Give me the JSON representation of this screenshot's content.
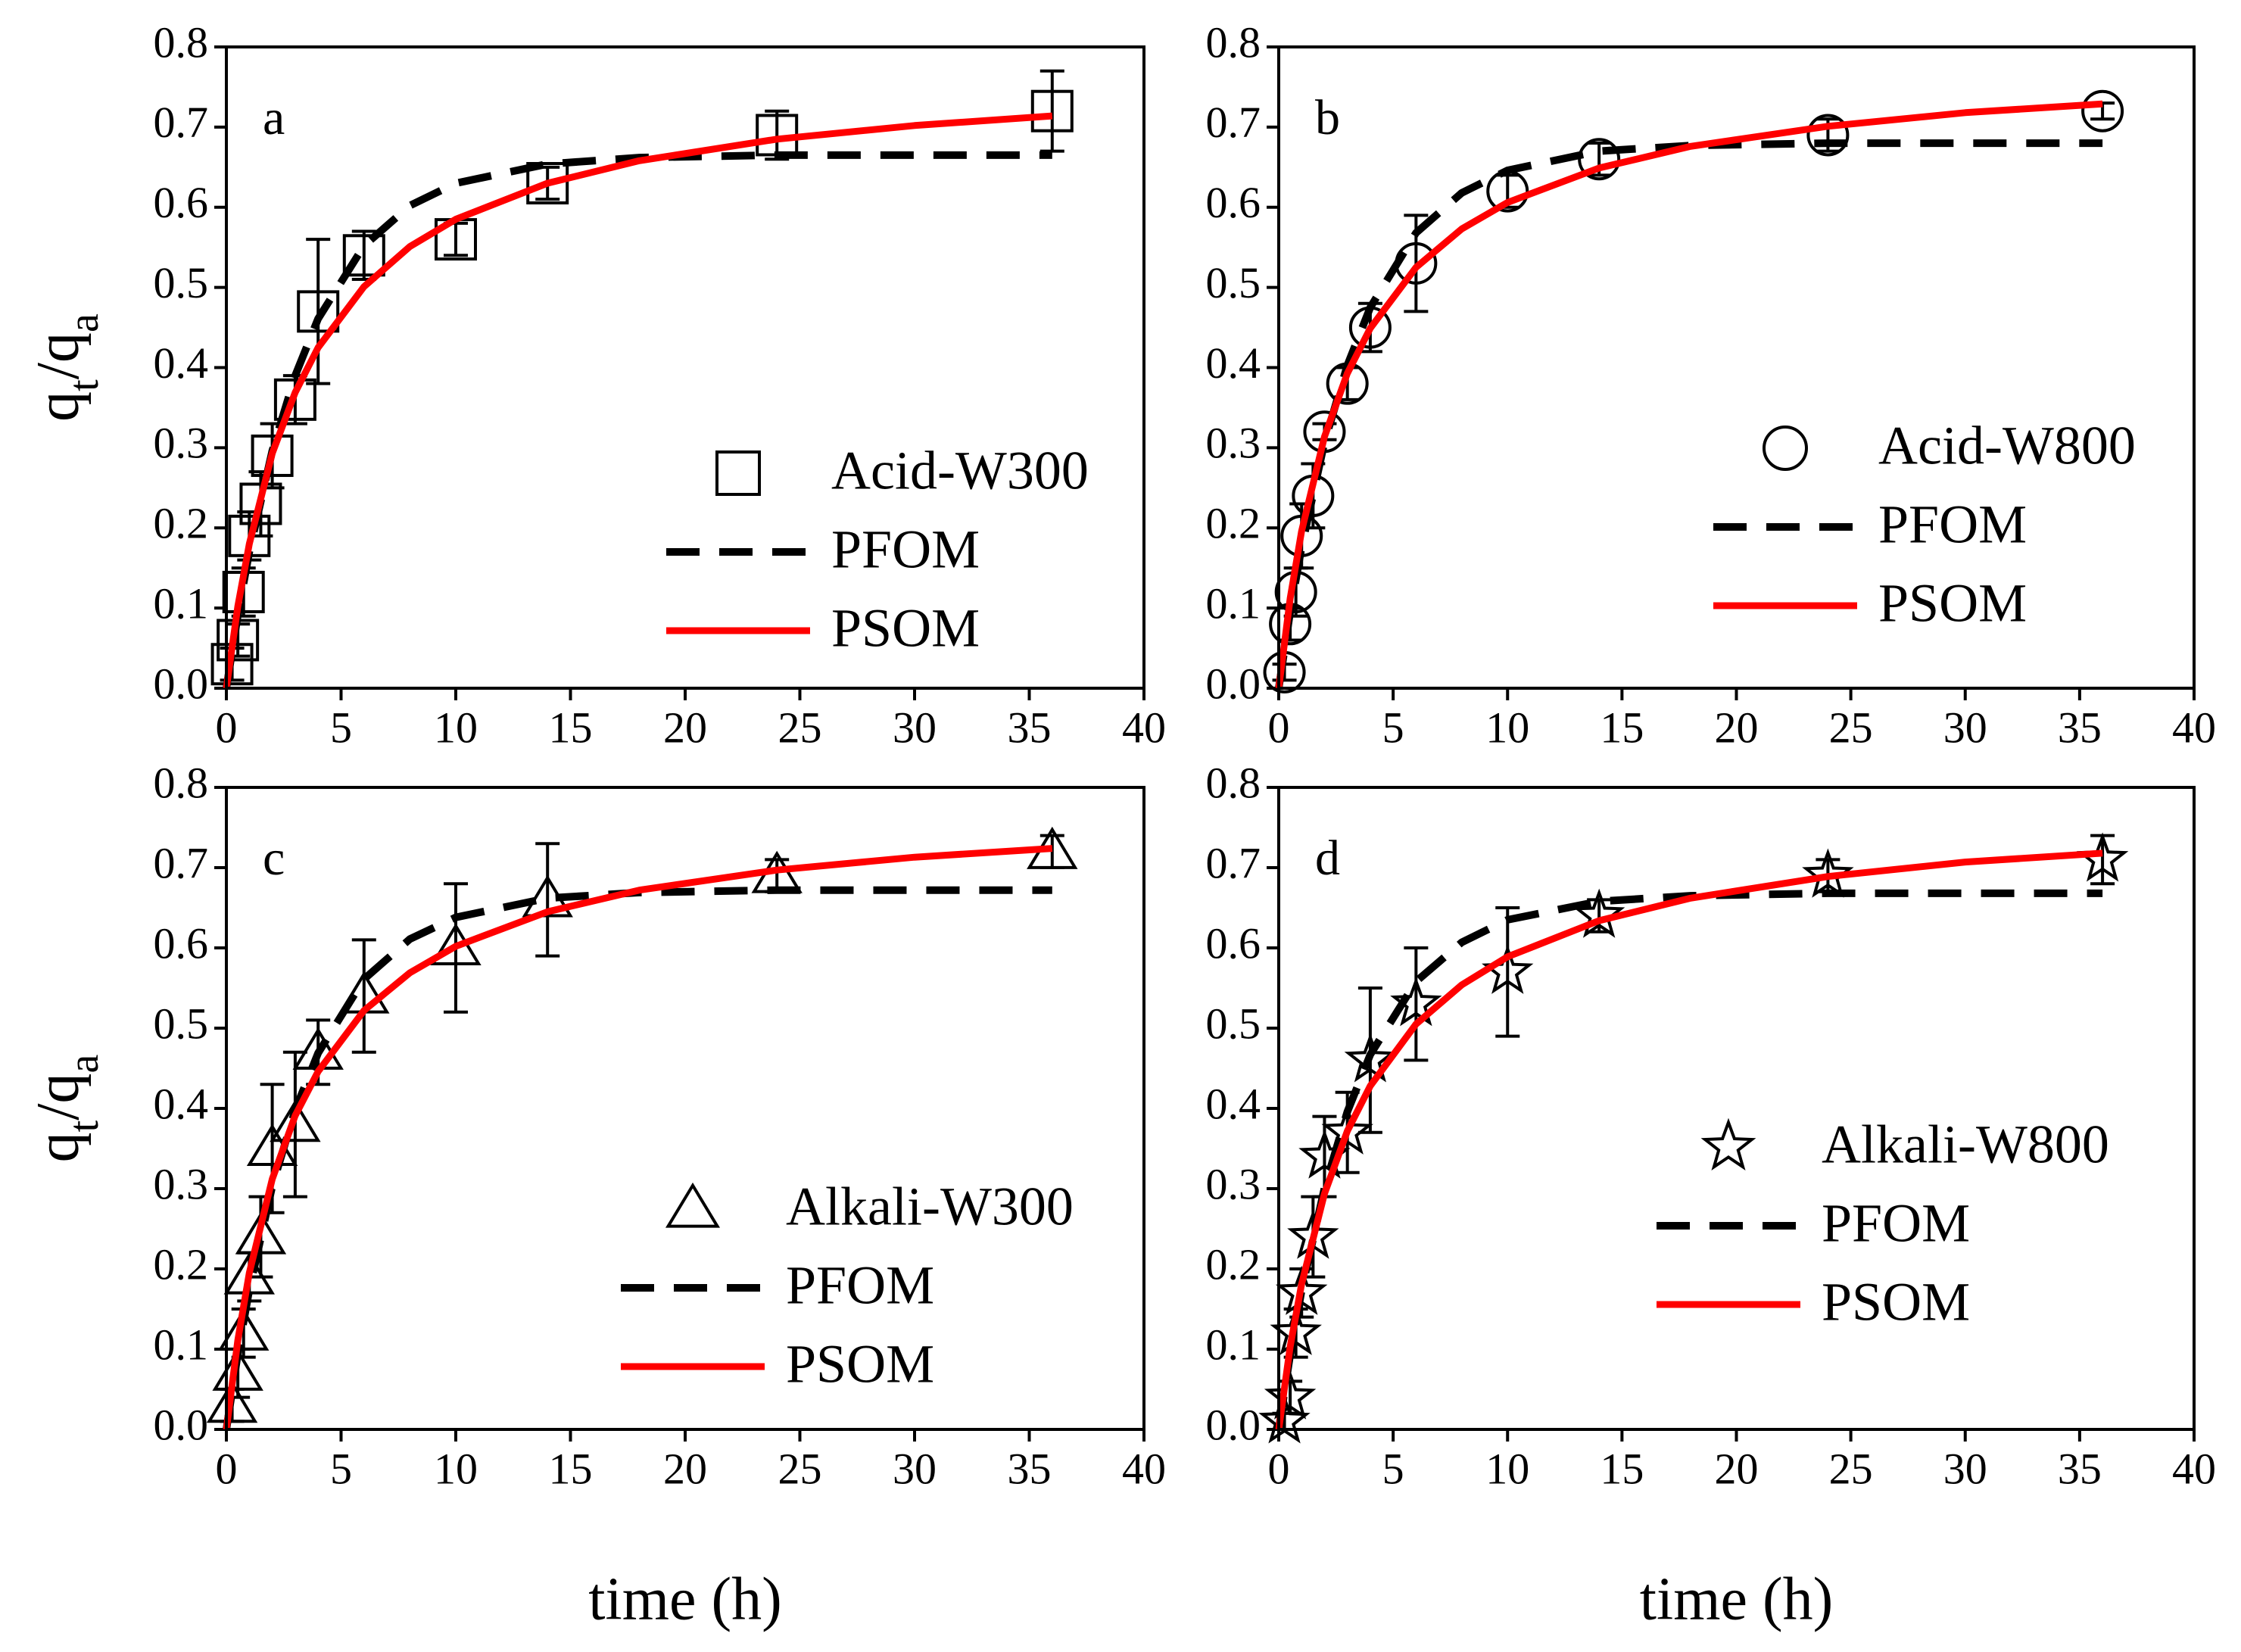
{
  "chart_data": [
    {
      "type": "scatter",
      "label": "a",
      "ylabel": [
        "q",
        "t",
        "/q",
        "a"
      ],
      "xlim": [
        0,
        40
      ],
      "ylim": [
        0,
        0.8
      ],
      "xticks": [
        0,
        5,
        10,
        15,
        20,
        25,
        30,
        35,
        40
      ],
      "yticks": [
        {
          "value": 0,
          "label": "0.0"
        },
        0.1,
        0.2,
        0.3,
        0.4,
        0.5,
        0.6,
        0.7,
        0.8
      ],
      "series": [
        {
          "name": "Acid-W300",
          "color": "#000000",
          "marker": "square",
          "x": [
            0.25,
            0.5,
            0.75,
            1,
            1.5,
            2,
            3,
            4,
            6,
            10,
            14,
            24,
            36
          ],
          "values": [
            0.03,
            0.06,
            0.12,
            0.19,
            0.23,
            0.29,
            0.36,
            0.47,
            0.54,
            0.56,
            0.63,
            0.69,
            0.72
          ],
          "errors": [
            0.02,
            0.02,
            0.03,
            0.03,
            0.04,
            0.04,
            0.03,
            0.09,
            0.03,
            0.02,
            0.02,
            0.03,
            0.05
          ]
        },
        {
          "name": "PFOM",
          "color": "#000000",
          "dashed": true,
          "x": [
            0,
            0.5,
            1,
            2,
            3,
            4,
            6,
            8,
            10,
            14,
            18,
            24,
            30,
            36
          ],
          "values": [
            0,
            0.091,
            0.17,
            0.296,
            0.39,
            0.461,
            0.552,
            0.602,
            0.63,
            0.654,
            0.662,
            0.665,
            0.665,
            0.665
          ]
        },
        {
          "name": "PSOM",
          "color": "#ff0000",
          "x": [
            0,
            0.5,
            1,
            2,
            3,
            4,
            6,
            8,
            10,
            14,
            18,
            24,
            30,
            36
          ],
          "values": [
            0,
            0.102,
            0.18,
            0.293,
            0.369,
            0.425,
            0.501,
            0.551,
            0.585,
            0.63,
            0.658,
            0.685,
            0.702,
            0.714
          ]
        }
      ]
    },
    {
      "type": "scatter",
      "label": "b",
      "xlim": [
        0,
        40
      ],
      "ylim": [
        0,
        0.8
      ],
      "xticks": [
        0,
        5,
        10,
        15,
        20,
        25,
        30,
        35,
        40
      ],
      "yticks": [
        {
          "value": 0,
          "label": "0.0"
        },
        0.1,
        0.2,
        0.3,
        0.4,
        0.5,
        0.6,
        0.7,
        0.8
      ],
      "series": [
        {
          "name": "Acid-W800",
          "color": "#000000",
          "marker": "circle",
          "x": [
            0.25,
            0.5,
            0.75,
            1,
            1.5,
            2,
            3,
            4,
            6,
            10,
            14,
            24,
            36
          ],
          "values": [
            0.02,
            0.08,
            0.12,
            0.19,
            0.24,
            0.32,
            0.38,
            0.45,
            0.53,
            0.62,
            0.66,
            0.69,
            0.72
          ],
          "errors": [
            0.01,
            0.02,
            0.03,
            0.04,
            0.04,
            0.01,
            0.02,
            0.03,
            0.06,
            0.02,
            0.02,
            0.02,
            0.01
          ]
        },
        {
          "name": "PFOM",
          "color": "#000000",
          "dashed": true,
          "x": [
            0,
            0.5,
            1,
            2,
            3,
            4,
            6,
            8,
            10,
            14,
            18,
            24,
            30,
            36
          ],
          "values": [
            0,
            0.095,
            0.176,
            0.307,
            0.403,
            0.475,
            0.568,
            0.618,
            0.646,
            0.67,
            0.677,
            0.68,
            0.68,
            0.68
          ]
        },
        {
          "name": "PSOM",
          "color": "#ff0000",
          "x": [
            0,
            0.5,
            1,
            2,
            3,
            4,
            6,
            8,
            10,
            14,
            18,
            24,
            30,
            36
          ],
          "values": [
            0,
            0.112,
            0.196,
            0.314,
            0.393,
            0.449,
            0.525,
            0.573,
            0.606,
            0.649,
            0.676,
            0.701,
            0.718,
            0.729
          ]
        }
      ]
    },
    {
      "type": "scatter",
      "label": "c",
      "ylabel": [
        "q",
        "t",
        "/q",
        "a"
      ],
      "xlabel": "time (h)",
      "xlim": [
        0,
        40
      ],
      "ylim": [
        0,
        0.8
      ],
      "xticks": [
        0,
        5,
        10,
        15,
        20,
        25,
        30,
        35,
        40
      ],
      "yticks": [
        {
          "value": 0,
          "label": "0.0"
        },
        0.1,
        0.2,
        0.3,
        0.4,
        0.5,
        0.6,
        0.7,
        0.8
      ],
      "series": [
        {
          "name": "Alkali-W300",
          "color": "#000000",
          "marker": "triangle",
          "x": [
            0.25,
            0.5,
            0.75,
            1,
            1.5,
            2,
            3,
            4,
            6,
            10,
            14,
            24,
            36
          ],
          "values": [
            0.03,
            0.07,
            0.12,
            0.19,
            0.24,
            0.35,
            0.38,
            0.47,
            0.54,
            0.6,
            0.66,
            0.69,
            0.72
          ],
          "errors": [
            0.02,
            0.03,
            0.03,
            0.03,
            0.05,
            0.08,
            0.09,
            0.04,
            0.07,
            0.08,
            0.07,
            0.02,
            0.02
          ]
        },
        {
          "name": "PFOM",
          "color": "#000000",
          "dashed": true,
          "x": [
            0,
            0.5,
            1,
            2,
            3,
            4,
            6,
            8,
            10,
            14,
            18,
            24,
            30,
            36
          ],
          "values": [
            0,
            0.094,
            0.174,
            0.303,
            0.398,
            0.469,
            0.561,
            0.611,
            0.638,
            0.662,
            0.669,
            0.672,
            0.672,
            0.672
          ]
        },
        {
          "name": "PSOM",
          "color": "#ff0000",
          "x": [
            0,
            0.5,
            1,
            2,
            3,
            4,
            6,
            8,
            10,
            14,
            18,
            24,
            30,
            36
          ],
          "values": [
            0,
            0.111,
            0.195,
            0.312,
            0.391,
            0.446,
            0.522,
            0.569,
            0.602,
            0.645,
            0.672,
            0.697,
            0.713,
            0.724
          ]
        }
      ]
    },
    {
      "type": "scatter",
      "label": "d",
      "xlabel": "time (h)",
      "xlim": [
        0,
        40
      ],
      "ylim": [
        0,
        0.8
      ],
      "xticks": [
        0,
        5,
        10,
        15,
        20,
        25,
        30,
        35,
        40
      ],
      "yticks": [
        {
          "value": 0,
          "label": "0.0"
        },
        0.1,
        0.2,
        0.3,
        0.4,
        0.5,
        0.6,
        0.7,
        0.8
      ],
      "series": [
        {
          "name": "Alkali-W800",
          "color": "#000000",
          "marker": "star",
          "x": [
            0.25,
            0.5,
            0.75,
            1,
            1.5,
            2,
            3,
            4,
            6,
            10,
            14,
            24,
            36
          ],
          "values": [
            0.01,
            0.04,
            0.12,
            0.17,
            0.24,
            0.34,
            0.37,
            0.46,
            0.53,
            0.57,
            0.64,
            0.69,
            0.71
          ],
          "errors": [
            0.01,
            0.02,
            0.03,
            0.03,
            0.05,
            0.05,
            0.05,
            0.09,
            0.07,
            0.08,
            0.02,
            0.02,
            0.03
          ]
        },
        {
          "name": "PFOM",
          "color": "#000000",
          "dashed": true,
          "x": [
            0,
            0.5,
            1,
            2,
            3,
            4,
            6,
            8,
            10,
            14,
            18,
            24,
            30,
            36
          ],
          "values": [
            0,
            0.093,
            0.173,
            0.301,
            0.396,
            0.467,
            0.558,
            0.607,
            0.635,
            0.658,
            0.665,
            0.668,
            0.668,
            0.668
          ]
        },
        {
          "name": "PSOM",
          "color": "#ff0000",
          "x": [
            0,
            0.5,
            1,
            2,
            3,
            4,
            6,
            8,
            10,
            14,
            18,
            24,
            30,
            36
          ],
          "values": [
            0,
            0.103,
            0.181,
            0.294,
            0.372,
            0.428,
            0.505,
            0.554,
            0.589,
            0.634,
            0.662,
            0.689,
            0.707,
            0.718
          ]
        }
      ]
    }
  ]
}
